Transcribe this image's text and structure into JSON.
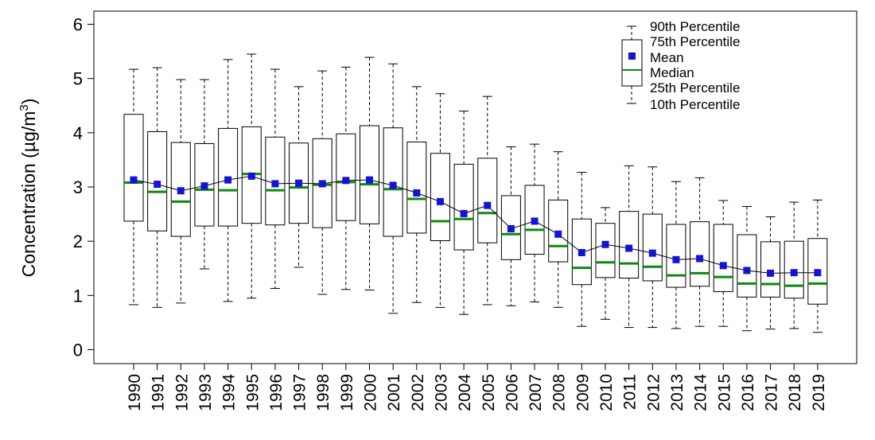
{
  "chart_data": {
    "type": "boxplot",
    "title": "",
    "xlabel": "",
    "ylabel_prefix": "Concentration (",
    "ylabel_unit": "µg/m",
    "ylabel_exp": "3",
    "ylabel_suffix": ")",
    "ylim": [
      -0.25,
      6.25
    ],
    "yticks": [
      "0",
      "1",
      "2",
      "3",
      "4",
      "5",
      "6"
    ],
    "categories": [
      "1990",
      "1991",
      "1992",
      "1993",
      "1994",
      "1995",
      "1996",
      "1997",
      "1998",
      "1999",
      "2000",
      "2001",
      "2002",
      "2003",
      "2004",
      "2005",
      "2006",
      "2007",
      "2008",
      "2009",
      "2010",
      "2011",
      "2012",
      "2013",
      "2014",
      "2015",
      "2016",
      "2017",
      "2018",
      "2019"
    ],
    "p10": [
      0.83,
      0.78,
      0.86,
      1.49,
      0.89,
      0.95,
      1.13,
      1.52,
      1.02,
      1.11,
      1.1,
      0.67,
      0.87,
      0.78,
      0.65,
      0.83,
      0.81,
      0.88,
      0.78,
      0.43,
      0.56,
      0.41,
      0.41,
      0.39,
      0.43,
      0.43,
      0.35,
      0.38,
      0.39,
      0.32
    ],
    "p25": [
      2.37,
      2.19,
      2.09,
      2.28,
      2.28,
      2.33,
      2.3,
      2.33,
      2.25,
      2.38,
      2.32,
      2.09,
      2.15,
      2.01,
      1.84,
      1.97,
      1.66,
      1.76,
      1.62,
      1.2,
      1.33,
      1.32,
      1.27,
      1.15,
      1.17,
      1.07,
      0.97,
      0.97,
      0.95,
      0.84
    ],
    "median": [
      3.08,
      2.91,
      2.73,
      2.95,
      2.94,
      3.24,
      2.94,
      2.99,
      3.04,
      3.09,
      3.05,
      2.96,
      2.78,
      2.37,
      2.41,
      2.52,
      2.13,
      2.21,
      1.91,
      1.51,
      1.61,
      1.59,
      1.53,
      1.37,
      1.41,
      1.34,
      1.22,
      1.21,
      1.18,
      1.22
    ],
    "mean": [
      3.13,
      3.05,
      2.93,
      3.02,
      3.13,
      3.2,
      3.06,
      3.07,
      3.06,
      3.12,
      3.13,
      3.03,
      2.89,
      2.73,
      2.51,
      2.66,
      2.23,
      2.37,
      2.13,
      1.79,
      1.94,
      1.87,
      1.78,
      1.66,
      1.68,
      1.55,
      1.46,
      1.41,
      1.42,
      1.42
    ],
    "p75": [
      4.34,
      4.02,
      3.82,
      3.8,
      4.08,
      4.11,
      3.92,
      3.81,
      3.89,
      3.98,
      4.13,
      4.09,
      3.83,
      3.62,
      3.42,
      3.53,
      2.84,
      3.03,
      2.76,
      2.41,
      2.33,
      2.55,
      2.5,
      2.31,
      2.36,
      2.31,
      2.12,
      1.99,
      2.0,
      2.05
    ],
    "p90": [
      5.17,
      5.2,
      4.98,
      4.98,
      5.35,
      5.45,
      5.17,
      4.85,
      5.14,
      5.21,
      5.39,
      5.27,
      4.85,
      4.72,
      4.4,
      4.67,
      3.74,
      3.79,
      3.65,
      3.27,
      2.62,
      3.39,
      3.37,
      3.1,
      3.17,
      2.75,
      2.64,
      2.45,
      2.72,
      2.76
    ],
    "legend": {
      "p90": "90th Percentile",
      "p75": "75th Percentile",
      "mean": "Mean",
      "median": "Median",
      "p25": "25th Percentile",
      "p10": "10th Percentile"
    },
    "colors": {
      "box": "#000000",
      "whisker": "#000000",
      "median": "#108810",
      "mean_marker": "#1414d2",
      "mean_line": "#000000"
    }
  }
}
